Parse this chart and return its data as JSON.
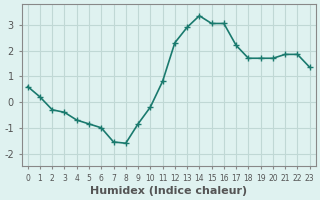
{
  "x": [
    0,
    1,
    2,
    3,
    4,
    5,
    6,
    7,
    8,
    9,
    10,
    11,
    12,
    13,
    14,
    15,
    16,
    17,
    18,
    19,
    20,
    21,
    22,
    23
  ],
  "y": [
    0.6,
    0.2,
    -0.3,
    -0.4,
    -0.7,
    -0.85,
    -1.0,
    -1.55,
    -1.6,
    -0.85,
    -0.2,
    0.8,
    2.3,
    2.9,
    3.35,
    3.05,
    3.05,
    2.2,
    1.7,
    1.7,
    1.7,
    1.85,
    1.85,
    1.35
  ],
  "line_color": "#1a7a6e",
  "marker": "+",
  "marker_size": 4,
  "line_width": 1.2,
  "bg_color": "#dff2f0",
  "grid_color": "#c0d8d5",
  "xlabel": "Humidex (Indice chaleur)",
  "ylabel": "",
  "title": "",
  "xlim": [
    -0.5,
    23.5
  ],
  "ylim": [
    -2.5,
    3.8
  ],
  "yticks": [
    -2,
    -1,
    0,
    1,
    2,
    3
  ],
  "xticks": [
    0,
    1,
    2,
    3,
    4,
    5,
    6,
    7,
    8,
    9,
    10,
    11,
    12,
    13,
    14,
    15,
    16,
    17,
    18,
    19,
    20,
    21,
    22,
    23
  ],
  "xtick_fontsize": 5.5,
  "ytick_fontsize": 7,
  "xlabel_fontsize": 8,
  "tick_color": "#555555",
  "spine_color": "#888888"
}
